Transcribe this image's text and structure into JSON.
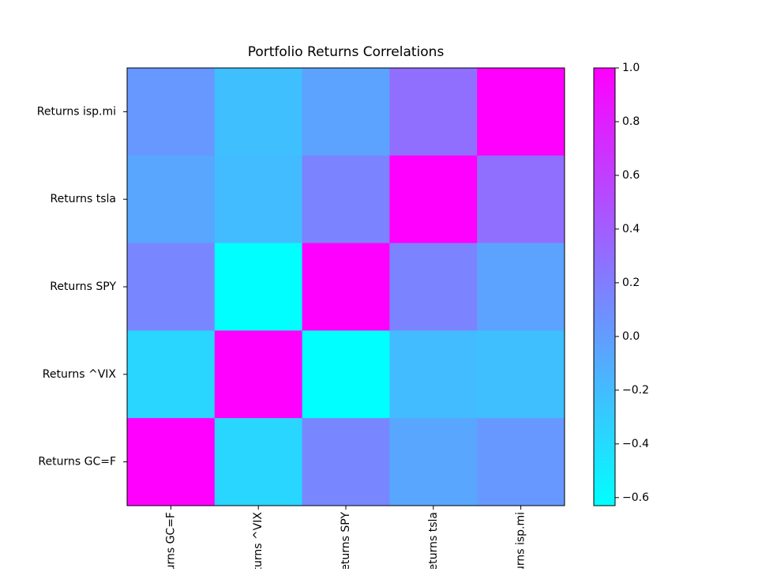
{
  "chart_data": {
    "type": "heatmap",
    "title": "Portfolio Returns Correlations",
    "x_categories": [
      "Returns GC=F",
      "Returns ^VIX",
      "Returns SPY",
      "Returns tsla",
      "Returns isp.mi"
    ],
    "y_categories": [
      "Returns isp.mi",
      "Returns tsla",
      "Returns SPY",
      "Returns ^VIX",
      "Returns GC=F"
    ],
    "values": [
      [
        0.03,
        -0.22,
        -0.04,
        0.29,
        1.0
      ],
      [
        -0.06,
        -0.2,
        0.16,
        1.0,
        0.29
      ],
      [
        0.14,
        -0.63,
        1.0,
        0.16,
        -0.04
      ],
      [
        -0.37,
        1.0,
        -0.63,
        -0.2,
        -0.22
      ],
      [
        1.0,
        -0.37,
        0.14,
        -0.06,
        0.03
      ]
    ],
    "colormap": "cool",
    "colorbar_lim": [
      -0.63,
      1.0
    ],
    "colorbar_ticks": [
      {
        "value": -0.6,
        "label": "−0.6"
      },
      {
        "value": -0.4,
        "label": "−0.4"
      },
      {
        "value": -0.2,
        "label": "−0.2"
      },
      {
        "value": 0.0,
        "label": "0.0"
      },
      {
        "value": 0.2,
        "label": "0.2"
      },
      {
        "value": 0.4,
        "label": "0.4"
      },
      {
        "value": 0.6,
        "label": "0.6"
      },
      {
        "value": 0.8,
        "label": "0.8"
      },
      {
        "value": 1.0,
        "label": "1.0"
      }
    ]
  }
}
